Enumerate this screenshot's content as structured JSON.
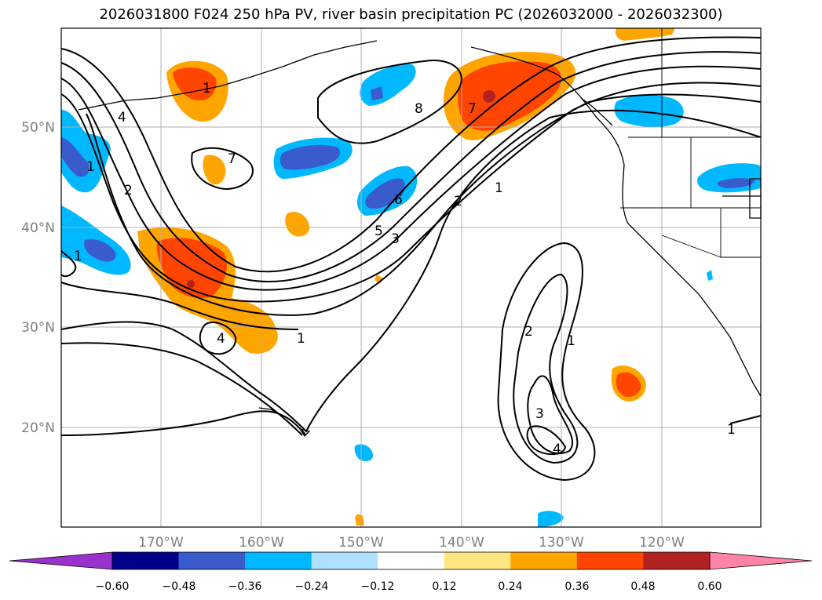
{
  "title": "2026031800 F024 250 hPa PV, river basin precipitation PC (2026032000 - 2026032300)",
  "map": {
    "lon_ticks": [
      "170°W",
      "160°W",
      "150°W",
      "140°W",
      "130°W",
      "120°W"
    ],
    "lat_ticks": [
      "50°N",
      "40°N",
      "30°N",
      "20°N"
    ],
    "colors": {
      "coast": "#000000",
      "grid": "#b0b0b0",
      "neg_strong": "#3a5bcc",
      "neg_mid": "#00b8ff",
      "neg_dark": "#4b2fb8",
      "pos_light": "#ffe680",
      "pos_mid": "#ffa500",
      "pos_strong": "#ff4500",
      "pos_dark": "#b22222"
    },
    "contour_labels": [
      "4",
      "2",
      "1",
      "1",
      "1",
      "4",
      "1",
      "8",
      "7",
      "7",
      "6",
      "5",
      "3",
      "2",
      "1",
      "2",
      "1",
      "3",
      "4",
      "1"
    ]
  },
  "colorbar": {
    "labels": [
      "−0.60",
      "−0.48",
      "−0.36",
      "−0.24",
      "−0.12",
      "0.12",
      "0.24",
      "0.36",
      "0.48",
      "0.60"
    ],
    "colors": [
      "#9932cc",
      "#00008b",
      "#3a5bcc",
      "#00b8ff",
      "#aee0ff",
      "#ffffff",
      "#ffe680",
      "#ffa500",
      "#ff4500",
      "#b22222",
      "#ff85a8"
    ]
  }
}
